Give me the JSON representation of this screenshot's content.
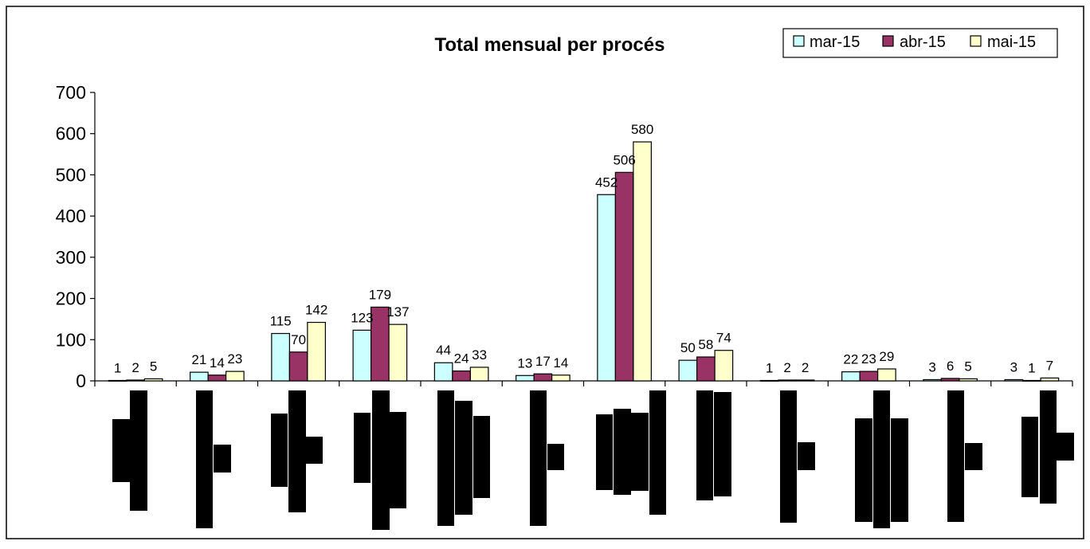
{
  "chart_data": {
    "type": "bar",
    "title": "Total mensual per procés",
    "xlabel": "",
    "ylabel": "",
    "ylim": [
      0,
      700
    ],
    "yticks": [
      0,
      100,
      200,
      300,
      400,
      500,
      600,
      700
    ],
    "grid": false,
    "legend_position": "top-right",
    "categories": [
      "",
      "",
      "",
      "",
      "",
      "",
      "",
      "",
      "",
      "",
      "",
      ""
    ],
    "redacted_category_labels": true,
    "series": [
      {
        "name": "mar-15",
        "color": "#ccffff",
        "values": [
          1,
          21,
          115,
          123,
          44,
          13,
          452,
          50,
          1,
          22,
          3,
          3
        ]
      },
      {
        "name": "abr-15",
        "color": "#993366",
        "values": [
          2,
          14,
          70,
          179,
          24,
          17,
          506,
          58,
          2,
          23,
          6,
          1
        ]
      },
      {
        "name": "mai-15",
        "color": "#ffffcc",
        "values": [
          5,
          23,
          142,
          137,
          33,
          14,
          580,
          74,
          2,
          29,
          5,
          7
        ]
      }
    ]
  }
}
